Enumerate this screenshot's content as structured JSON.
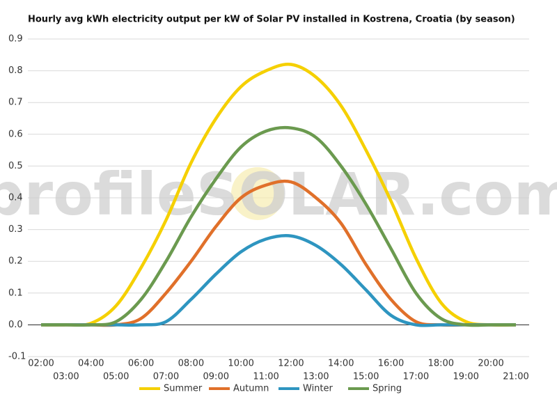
{
  "chart_data": {
    "type": "line",
    "title": "Hourly avg kWh electricity output per kW of Solar PV installed in Kostrena, Croatia (by season)",
    "watermark": "profileSOLAR.com",
    "categories": [
      "02:00",
      "03:00",
      "04:00",
      "05:00",
      "06:00",
      "07:00",
      "08:00",
      "09:00",
      "10:00",
      "11:00",
      "12:00",
      "13:00",
      "14:00",
      "15:00",
      "16:00",
      "17:00",
      "18:00",
      "19:00",
      "20:00",
      "21:00"
    ],
    "series": [
      {
        "name": "Summer",
        "color": "#f5d000",
        "values": [
          0,
          0,
          0.005,
          0.06,
          0.18,
          0.33,
          0.51,
          0.65,
          0.75,
          0.8,
          0.82,
          0.78,
          0.69,
          0.55,
          0.39,
          0.21,
          0.07,
          0.01,
          0,
          0
        ]
      },
      {
        "name": "Autumn",
        "color": "#e0702a",
        "values": [
          0,
          0,
          0,
          0,
          0.02,
          0.1,
          0.2,
          0.31,
          0.4,
          0.44,
          0.45,
          0.4,
          0.32,
          0.19,
          0.08,
          0.01,
          0,
          0,
          0,
          0
        ]
      },
      {
        "name": "Winter",
        "color": "#2e95c0",
        "values": [
          0,
          0,
          0,
          0,
          0,
          0.01,
          0.08,
          0.16,
          0.23,
          0.27,
          0.28,
          0.25,
          0.19,
          0.11,
          0.03,
          0,
          0,
          0,
          0,
          0
        ]
      },
      {
        "name": "Spring",
        "color": "#6b9a4f",
        "values": [
          0,
          0,
          0,
          0.01,
          0.08,
          0.2,
          0.34,
          0.46,
          0.56,
          0.61,
          0.62,
          0.59,
          0.5,
          0.38,
          0.24,
          0.1,
          0.02,
          0,
          0,
          0
        ]
      }
    ],
    "ylim": [
      -0.1,
      0.9
    ],
    "yticks": [
      -0.1,
      {
        "value": 0,
        "label": "0.0"
      },
      0.1,
      0.2,
      0.3,
      0.4,
      0.5,
      0.6,
      0.7,
      0.8,
      0.9
    ],
    "grid": true,
    "legend": "bottom"
  }
}
